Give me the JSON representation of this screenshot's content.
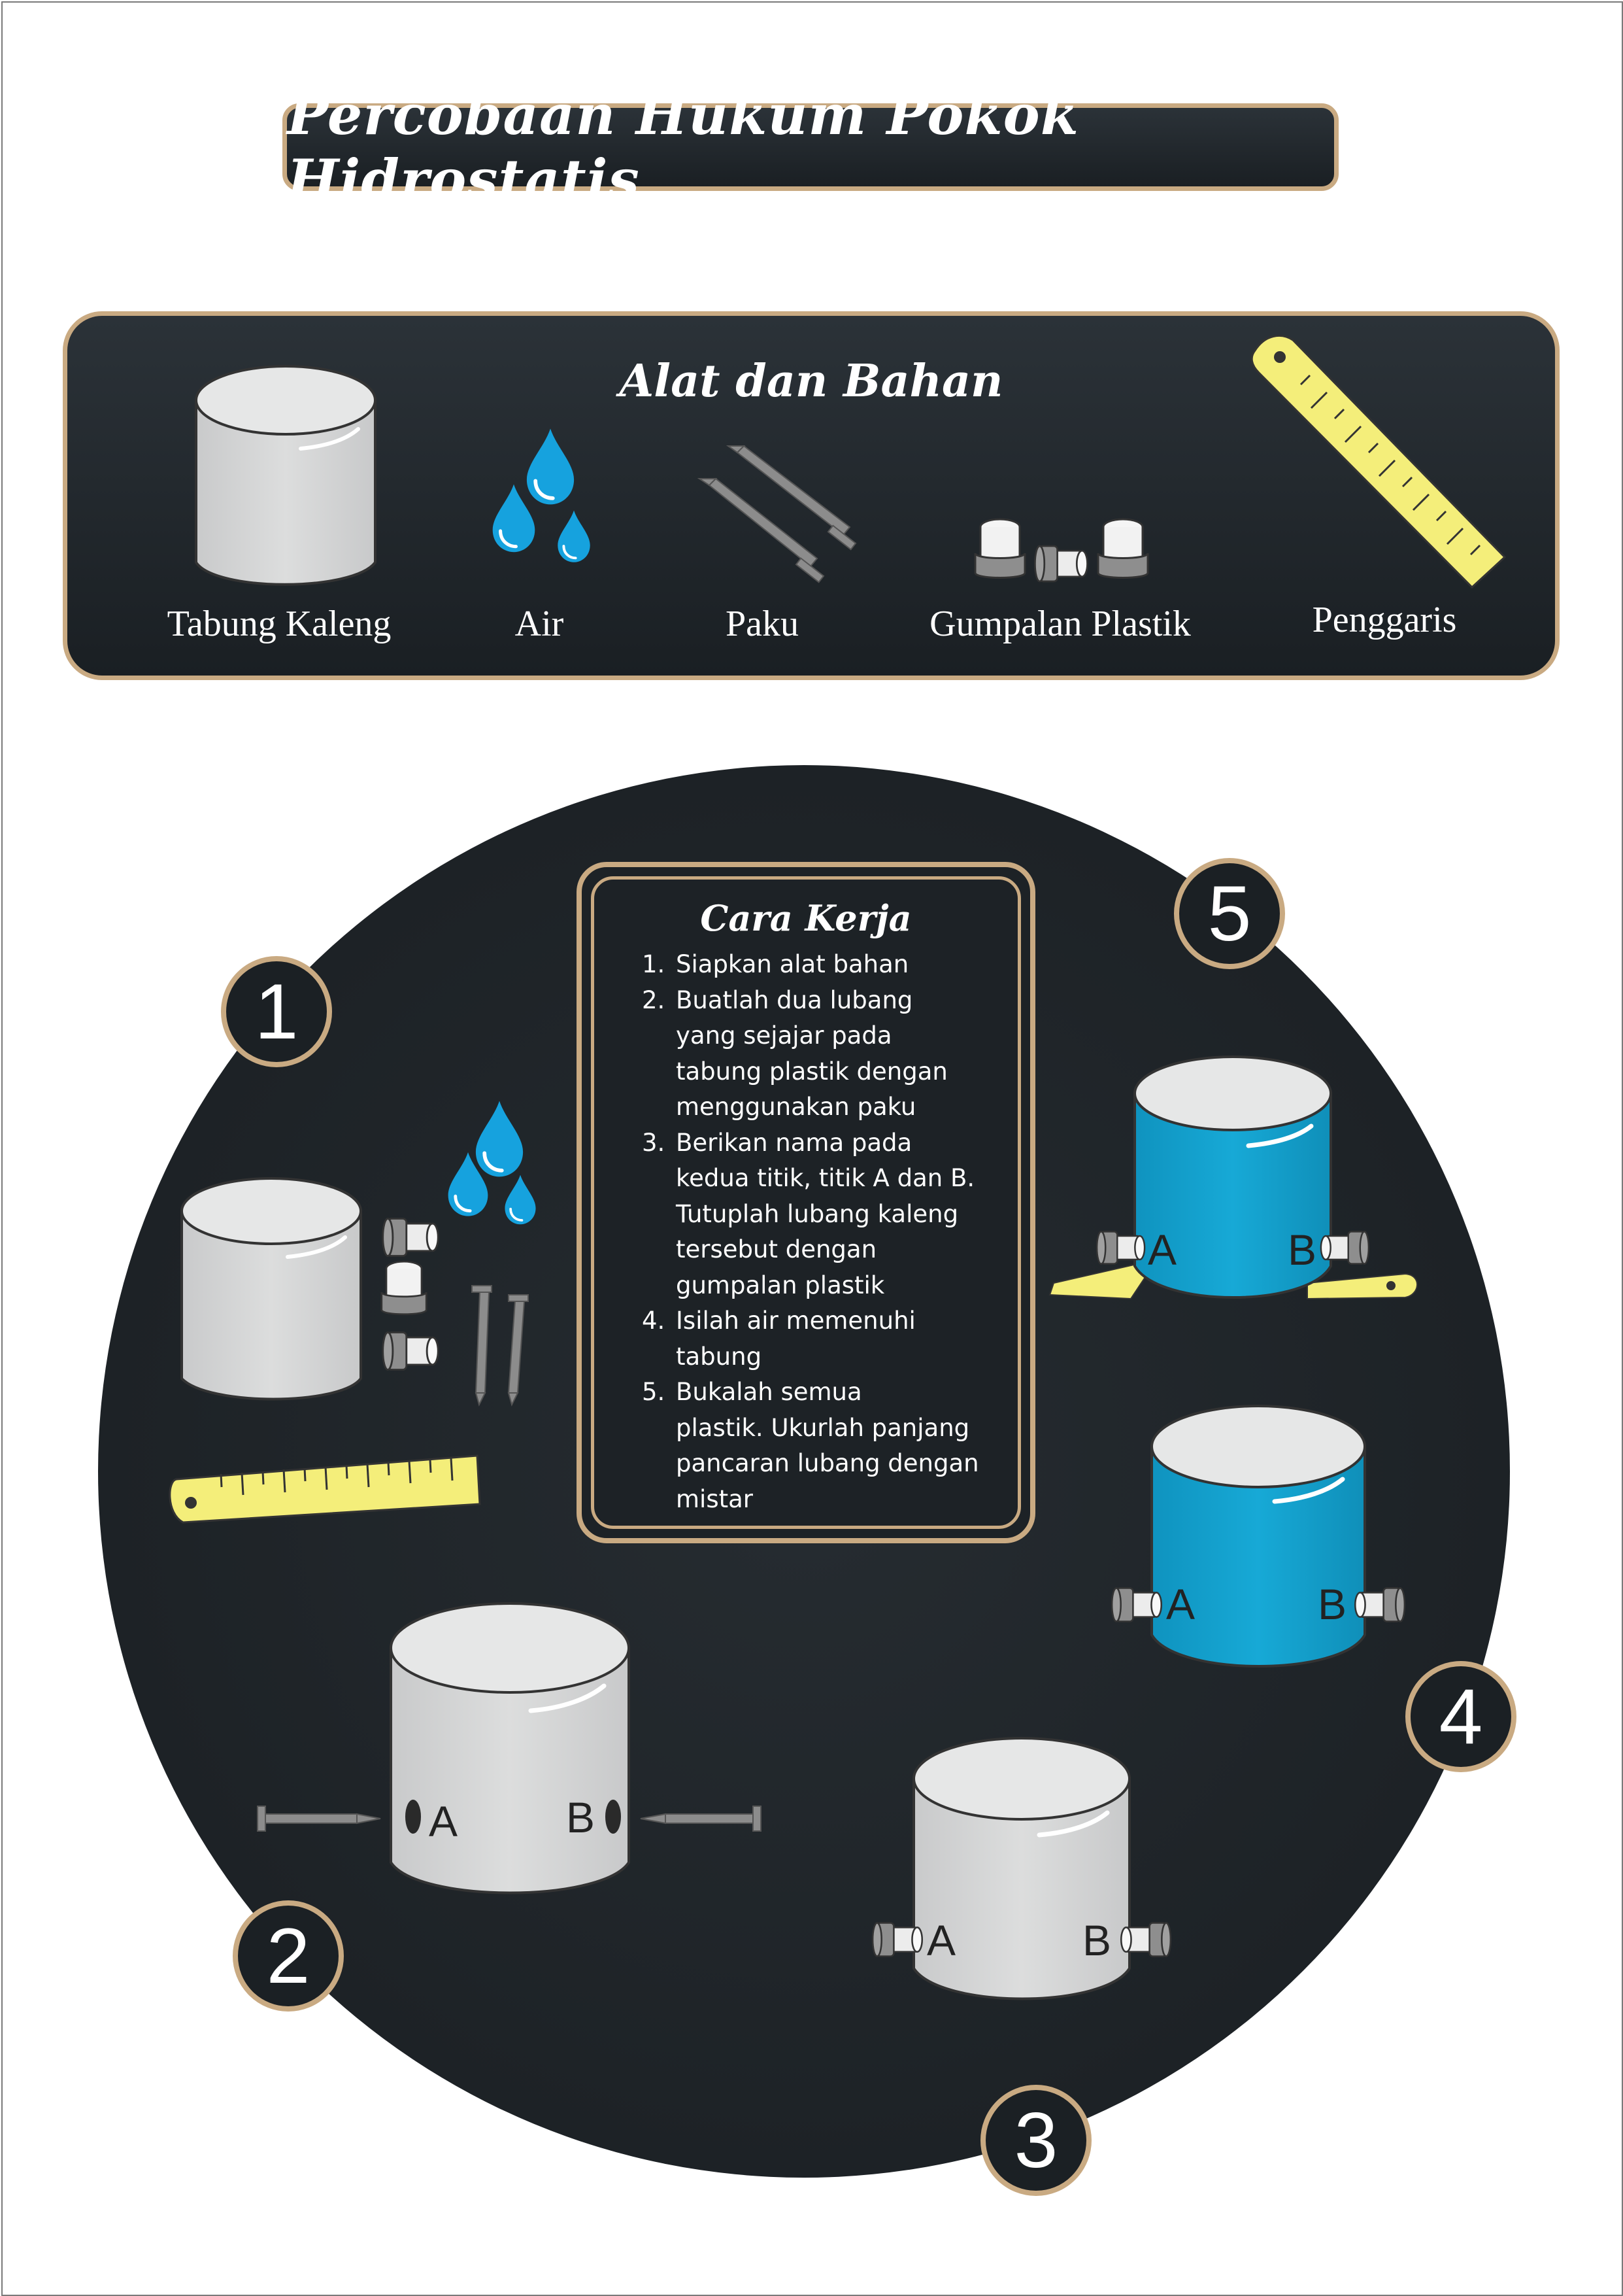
{
  "title": "Percobaan Hukum Pokok Hidrostatis",
  "alat_bahan": {
    "heading": "Alat dan Bahan",
    "items": [
      {
        "label": "Tabung Kaleng",
        "icon": "tin-can-icon"
      },
      {
        "label": "Air",
        "icon": "water-drops-icon"
      },
      {
        "label": "Paku",
        "icon": "nails-icon"
      },
      {
        "label": "Gumpalan Plastik",
        "icon": "plastic-plugs-icon"
      },
      {
        "label": "Penggaris",
        "icon": "ruler-icon"
      }
    ]
  },
  "cara_kerja": {
    "heading": "Cara Kerja",
    "steps": [
      {
        "num": "1.",
        "lines": [
          "Siapkan alat bahan"
        ]
      },
      {
        "num": "2.",
        "lines": [
          "Buatlah dua lubang",
          "yang sejajar pada",
          "tabung plastik dengan",
          "menggunakan paku"
        ]
      },
      {
        "num": "3.",
        "lines": [
          "Berikan nama pada",
          "kedua titik, titik A dan B.",
          "Tutuplah lubang kaleng",
          "tersebut dengan",
          "gumpalan plastik"
        ]
      },
      {
        "num": "4.",
        "lines": [
          "Isilah air memenuhi",
          "tabung"
        ]
      },
      {
        "num": "5.",
        "lines": [
          "Bukalah semua",
          "plastik. Ukurlah panjang",
          "pancaran lubang dengan",
          "mistar"
        ]
      }
    ]
  },
  "steps": {
    "badges": [
      "1",
      "2",
      "3",
      "4",
      "5"
    ],
    "point_a": "A",
    "point_b": "B"
  },
  "colors": {
    "dark_panel": "#1d2226",
    "gold_border": "#c9aa82",
    "can_gray": "#d9dadb",
    "water_blue": "#12a3d0",
    "ruler_yellow": "#f4ee7a"
  }
}
